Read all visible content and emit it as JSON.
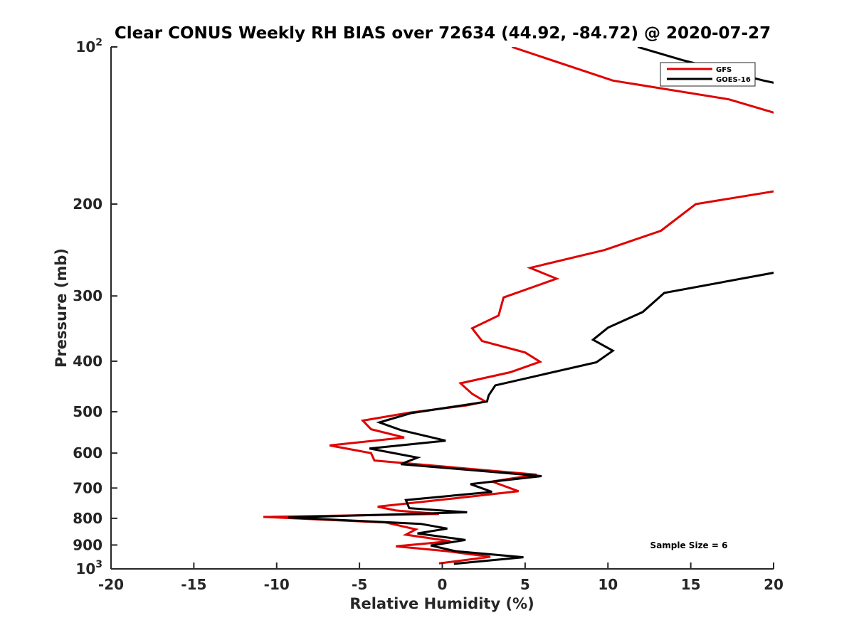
{
  "chart_data": {
    "type": "line",
    "title": "Clear CONUS Weekly RH BIAS over 72634 (44.92, -84.72) @ 2020-07-27",
    "xlabel": "Relative Humidity (%)",
    "ylabel": "Pressure (mb)",
    "xlim": [
      -20,
      20
    ],
    "ylim": [
      100,
      1000
    ],
    "yscale": "log",
    "y_reversed": true,
    "grid": false,
    "x_ticks": [
      -20,
      -15,
      -10,
      -5,
      0,
      5,
      10,
      15,
      20
    ],
    "x_tick_labels": [
      "-20",
      "-15",
      "-10",
      "-5",
      "0",
      "5",
      "10",
      "15",
      "20"
    ],
    "y_ticks": [
      {
        "value": 100,
        "label": "10",
        "sup": "2"
      },
      {
        "value": 200,
        "label": "200",
        "sup": ""
      },
      {
        "value": 300,
        "label": "300",
        "sup": ""
      },
      {
        "value": 400,
        "label": "400",
        "sup": ""
      },
      {
        "value": 500,
        "label": "500",
        "sup": ""
      },
      {
        "value": 600,
        "label": "600",
        "sup": ""
      },
      {
        "value": 700,
        "label": "700",
        "sup": ""
      },
      {
        "value": 800,
        "label": "800",
        "sup": ""
      },
      {
        "value": 900,
        "label": "900",
        "sup": ""
      },
      {
        "value": 1000,
        "label": "10",
        "sup": "3"
      }
    ],
    "legend_position": "top-right",
    "annotation": "Sample Size = 6",
    "series": [
      {
        "name": "GFS",
        "color": "#e00000",
        "segments": [
          [
            {
              "x": 4.2,
              "y": 100
            },
            {
              "x": 10.3,
              "y": 116
            },
            {
              "x": 17.3,
              "y": 126
            },
            {
              "x": 20.5,
              "y": 135
            }
          ],
          [
            {
              "x": 20.5,
              "y": 188
            },
            {
              "x": 15.3,
              "y": 200
            },
            {
              "x": 13.2,
              "y": 225
            },
            {
              "x": 9.8,
              "y": 245
            },
            {
              "x": 5.3,
              "y": 265
            },
            {
              "x": 6.9,
              "y": 278
            },
            {
              "x": 3.7,
              "y": 302
            },
            {
              "x": 3.4,
              "y": 327
            },
            {
              "x": 1.8,
              "y": 346
            },
            {
              "x": 2.4,
              "y": 366
            },
            {
              "x": 5.0,
              "y": 385
            },
            {
              "x": 5.9,
              "y": 401
            },
            {
              "x": 4.1,
              "y": 420
            },
            {
              "x": 1.1,
              "y": 441
            },
            {
              "x": 1.8,
              "y": 462
            },
            {
              "x": 2.6,
              "y": 478
            },
            {
              "x": 1.5,
              "y": 486
            },
            {
              "x": -2.0,
              "y": 502
            },
            {
              "x": -4.8,
              "y": 520
            },
            {
              "x": -4.3,
              "y": 540
            },
            {
              "x": -2.3,
              "y": 560
            },
            {
              "x": -6.8,
              "y": 580
            },
            {
              "x": -4.3,
              "y": 600
            },
            {
              "x": -4.1,
              "y": 620
            },
            {
              "x": 5.7,
              "y": 660
            },
            {
              "x": 3.0,
              "y": 680
            },
            {
              "x": 4.6,
              "y": 710
            },
            {
              "x": 0.3,
              "y": 735
            },
            {
              "x": -3.9,
              "y": 760
            },
            {
              "x": -2.8,
              "y": 773
            },
            {
              "x": -0.2,
              "y": 785
            },
            {
              "x": -10.8,
              "y": 795
            },
            {
              "x": -3.4,
              "y": 815
            },
            {
              "x": -1.6,
              "y": 840
            },
            {
              "x": -2.2,
              "y": 860
            },
            {
              "x": 0.5,
              "y": 885
            },
            {
              "x": -2.8,
              "y": 905
            },
            {
              "x": 0.3,
              "y": 925
            },
            {
              "x": 2.9,
              "y": 948
            },
            {
              "x": -0.2,
              "y": 976
            }
          ]
        ]
      },
      {
        "name": "GOES-16",
        "color": "#000000",
        "segments": [
          [
            {
              "x": 11.8,
              "y": 100
            },
            {
              "x": 14.5,
              "y": 106
            },
            {
              "x": 19.4,
              "y": 116
            },
            {
              "x": 20.5,
              "y": 118
            }
          ],
          [
            {
              "x": 20.5,
              "y": 269
            },
            {
              "x": 13.4,
              "y": 296
            },
            {
              "x": 12.1,
              "y": 322
            },
            {
              "x": 10.0,
              "y": 345
            },
            {
              "x": 9.1,
              "y": 364
            },
            {
              "x": 10.3,
              "y": 382
            },
            {
              "x": 9.3,
              "y": 402
            },
            {
              "x": 3.2,
              "y": 445
            },
            {
              "x": 2.8,
              "y": 465
            },
            {
              "x": 2.7,
              "y": 478
            },
            {
              "x": -1.9,
              "y": 503
            },
            {
              "x": -3.8,
              "y": 524
            },
            {
              "x": -2.5,
              "y": 542
            },
            {
              "x": 0.2,
              "y": 568
            },
            {
              "x": -4.4,
              "y": 588
            },
            {
              "x": -1.5,
              "y": 612
            },
            {
              "x": -2.5,
              "y": 630
            },
            {
              "x": 6.0,
              "y": 664
            },
            {
              "x": 1.7,
              "y": 688
            },
            {
              "x": 3.0,
              "y": 712
            },
            {
              "x": -2.2,
              "y": 738
            },
            {
              "x": -2.0,
              "y": 765
            },
            {
              "x": 1.5,
              "y": 779
            },
            {
              "x": -9.3,
              "y": 797
            },
            {
              "x": -1.3,
              "y": 820
            },
            {
              "x": 0.3,
              "y": 837
            },
            {
              "x": -1.5,
              "y": 855
            },
            {
              "x": 1.4,
              "y": 880
            },
            {
              "x": -0.7,
              "y": 902
            },
            {
              "x": 0.8,
              "y": 925
            },
            {
              "x": 4.9,
              "y": 950
            },
            {
              "x": 0.7,
              "y": 978
            }
          ]
        ]
      }
    ]
  }
}
